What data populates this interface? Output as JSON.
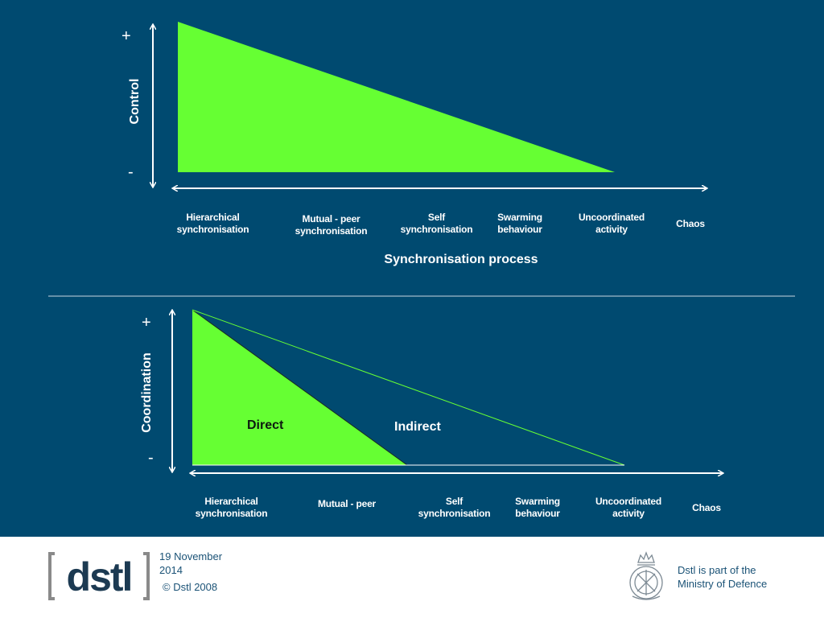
{
  "top_diagram": {
    "y_axis_title": "Control",
    "plus": "+",
    "minus": "-",
    "x_axis_title": "Synchronisation process",
    "categories": [
      "Hierarchical\nsynchronisation",
      "Mutual  - peer\nsynchronisation",
      "Self\nsynchronisation",
      "Swarming\nbehaviour",
      "Uncoordinated\nactivity",
      "Chaos"
    ]
  },
  "bottom_diagram": {
    "y_axis_title": "Coordination",
    "plus": "+",
    "minus": "-",
    "region_direct": "Direct",
    "region_indirect": "Indirect",
    "categories": [
      "Hierarchical\nsynchronisation",
      "Mutual  - peer",
      "Self\nsynchronisation",
      "Swarming\nbehaviour",
      "Uncoordinated\nactivity",
      "Chaos"
    ]
  },
  "footer": {
    "logo_text": "[dstl]",
    "date": "19 November\n2014",
    "copyright": "© Dstl 2008",
    "mod_note": "Dstl is part of the\nMinistry of Defence"
  },
  "colors": {
    "background": "#004a70",
    "triangle_fill": "#66ff33",
    "text": "#ffffff",
    "logo": "#1c3a52"
  },
  "icons": [
    "mod-crest-icon"
  ]
}
